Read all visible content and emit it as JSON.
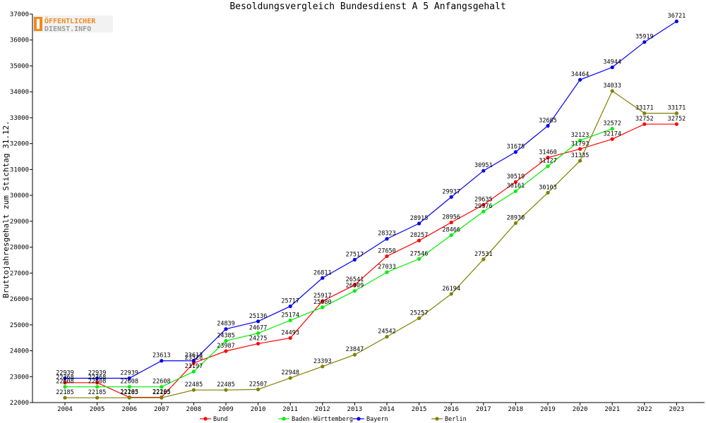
{
  "logo": {
    "line1": "ÖFFENTLICHER",
    "line2": "DIENST.INFO"
  },
  "chart_data": {
    "type": "line",
    "title": "Besoldungsvergleich Bundesdienst A 5 Anfangsgehalt",
    "xlabel": "",
    "ylabel": "Bruttojahresgehalt zum Stichtag 31.12.",
    "ylim": [
      22000,
      37000
    ],
    "yticks": [
      22000,
      23000,
      24000,
      25000,
      26000,
      27000,
      28000,
      29000,
      30000,
      31000,
      32000,
      33000,
      34000,
      35000,
      36000,
      37000
    ],
    "grid": false,
    "legend_position": "bottom",
    "x": [
      "2004",
      "2005",
      "2006",
      "2007",
      "2008",
      "2009",
      "2010",
      "2011",
      "2012",
      "2013",
      "2014",
      "2015",
      "2016",
      "2017",
      "2018",
      "2019",
      "2020",
      "2021",
      "2022",
      "2023"
    ],
    "series": [
      {
        "name": "Bund",
        "color": "#ff0000",
        "values": [
          22768,
          22768,
          22203,
          22203,
          23528,
          23987,
          24275,
          24493,
          25917,
          26541,
          27650,
          28257,
          28956,
          29635,
          30519,
          31460,
          31793,
          32174,
          32752,
          32752
        ]
      },
      {
        "name": "Baden-Württemberg",
        "color": "#00ee00",
        "values": [
          22608,
          22608,
          22608,
          22608,
          23197,
          24385,
          24677,
          25174,
          25680,
          26309,
          27033,
          27546,
          28466,
          29376,
          30161,
          31127,
          32123,
          32572,
          null,
          null
        ]
      },
      {
        "name": "Bayern",
        "color": "#0000ee",
        "values": [
          22939,
          22939,
          22939,
          23613,
          23613,
          24839,
          25136,
          25717,
          26811,
          27517,
          28323,
          28915,
          29937,
          30951,
          31675,
          32685,
          34464,
          34944,
          35919,
          36721
        ]
      },
      {
        "name": "Berlin",
        "color": "#808000",
        "values": [
          22185,
          22185,
          22185,
          22185,
          22485,
          22485,
          22507,
          22948,
          23393,
          23847,
          24542,
          25257,
          26194,
          27531,
          28930,
          30103,
          31335,
          34033,
          33171,
          33171
        ]
      }
    ]
  }
}
